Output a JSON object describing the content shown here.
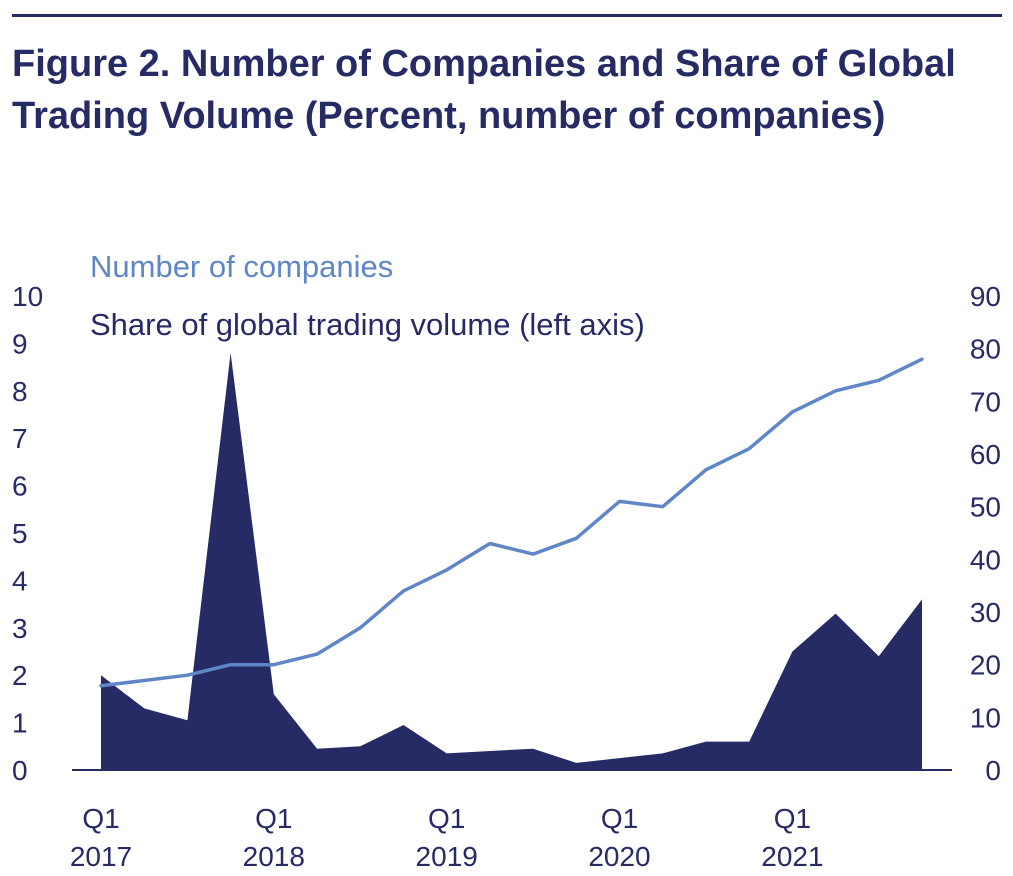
{
  "figure": {
    "title": "Figure 2.  Number of Companies and Share of Global Trading Volume (Percent, number of companies)"
  },
  "colors": {
    "title": "#262b66",
    "area_fill": "#262b66",
    "line": "#5f86c6",
    "axis": "#262b66",
    "tick_text": "#262b66"
  },
  "chart_data": {
    "type": "area",
    "x": [
      "Q1 2017",
      "Q2 2017",
      "Q3 2017",
      "Q4 2017",
      "Q1 2018",
      "Q2 2018",
      "Q3 2018",
      "Q4 2018",
      "Q1 2019",
      "Q2 2019",
      "Q3 2019",
      "Q4 2019",
      "Q1 2020",
      "Q2 2020",
      "Q3 2020",
      "Q4 2020",
      "Q1 2021",
      "Q2 2021",
      "Q3 2021",
      "Q4 2021"
    ],
    "x_tick_labels": [
      {
        "index": 0,
        "line1": "Q1",
        "line2": "2017"
      },
      {
        "index": 4,
        "line1": "Q1",
        "line2": "2018"
      },
      {
        "index": 8,
        "line1": "Q1",
        "line2": "2019"
      },
      {
        "index": 12,
        "line1": "Q1",
        "line2": "2020"
      },
      {
        "index": 16,
        "line1": "Q1",
        "line2": "2021"
      }
    ],
    "series": [
      {
        "name": "Share of global trading volume (left axis)",
        "kind": "area",
        "axis": "left",
        "values": [
          2.0,
          1.3,
          1.05,
          8.8,
          1.6,
          0.45,
          0.5,
          0.95,
          0.35,
          0.4,
          0.45,
          0.15,
          0.25,
          0.35,
          0.6,
          0.6,
          2.5,
          3.3,
          2.4,
          3.6
        ]
      },
      {
        "name": "Number of companies",
        "kind": "line",
        "axis": "right",
        "values": [
          16,
          17,
          18,
          20,
          20,
          22,
          27,
          34,
          38,
          43,
          41,
          44,
          51,
          50,
          57,
          61,
          68,
          72,
          74,
          78
        ]
      }
    ],
    "y_left": {
      "min": 0,
      "max": 10,
      "ticks": [
        0,
        1,
        2,
        3,
        4,
        5,
        6,
        7,
        8,
        9,
        10
      ]
    },
    "y_right": {
      "min": 0,
      "max": 90,
      "ticks": [
        0,
        10,
        20,
        30,
        40,
        50,
        60,
        70,
        80,
        90
      ]
    },
    "legend": {
      "placement": "top-left",
      "entries": [
        "Number of companies",
        "Share of global trading volume (left axis)"
      ]
    },
    "grid": false
  }
}
